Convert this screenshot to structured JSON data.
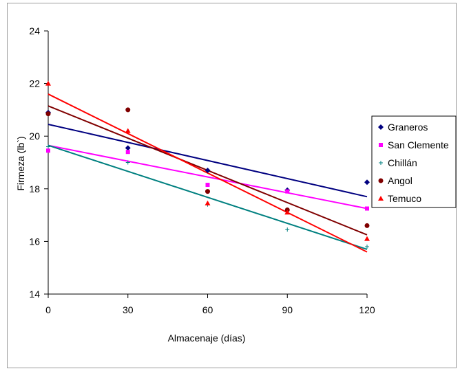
{
  "chart_data": {
    "type": "scatter",
    "xlabel": "Almacenaje (días)",
    "ylabel": "Firmeza (lb`)",
    "xlim": [
      0,
      120
    ],
    "ylim": [
      14,
      24
    ],
    "xticks": [
      0,
      30,
      60,
      90,
      120
    ],
    "yticks": [
      14,
      16,
      18,
      20,
      22,
      24
    ],
    "grid": false,
    "legend_position": "right",
    "series": [
      {
        "name": "Graneros",
        "color": "#000080",
        "marker": "diamond",
        "x": [
          0,
          30,
          60,
          90,
          120
        ],
        "y": [
          20.9,
          19.55,
          18.7,
          17.95,
          18.25
        ],
        "trend": [
          20.45,
          17.7
        ]
      },
      {
        "name": "San Clemente",
        "color": "#ff00ff",
        "marker": "square",
        "x": [
          0,
          30,
          60,
          90,
          120
        ],
        "y": [
          19.45,
          19.4,
          18.15,
          17.9,
          17.25
        ],
        "trend": [
          19.65,
          17.25
        ]
      },
      {
        "name": "Chillán",
        "color": "#008080",
        "marker": "plus",
        "x": [
          0,
          30,
          60,
          90,
          120
        ],
        "y": [
          19.6,
          19.0,
          17.4,
          16.45,
          15.8
        ],
        "trend": [
          19.65,
          15.7
        ]
      },
      {
        "name": "Angol",
        "color": "#800000",
        "marker": "circle",
        "x": [
          0,
          30,
          60,
          90,
          120
        ],
        "y": [
          20.85,
          21.0,
          17.9,
          17.2,
          16.6
        ],
        "trend": [
          21.15,
          16.25
        ]
      },
      {
        "name": "Temuco",
        "color": "#ff0000",
        "marker": "triangle",
        "x": [
          0,
          30,
          60,
          90,
          120
        ],
        "y": [
          22.0,
          20.2,
          17.45,
          17.1,
          16.1
        ],
        "trend": [
          21.6,
          15.6
        ]
      }
    ]
  }
}
